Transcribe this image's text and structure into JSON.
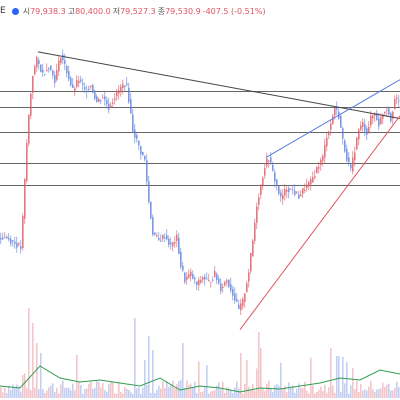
{
  "header": {
    "symbol_fragment": "E",
    "open_label": "시",
    "open_value": "79,938.3",
    "high_label": "고",
    "high_value": "80,400.0",
    "low_label": "저",
    "low_value": "79,527.3",
    "close_label": "종",
    "close_value": "79,530.9",
    "change_value": "-407.5 (-0.51%)",
    "status_dot_color": "#2962ff"
  },
  "colors": {
    "up": "#e05461",
    "down": "#5b7fe0",
    "volume_up": "#f2c6cb",
    "volume_down": "#c4cff2",
    "trendline": "#444444",
    "channel_upper": "#5b7fe0",
    "channel_lower": "#e05461",
    "hline": "#333333",
    "volume_ma": "#2e9e4f"
  },
  "chart_data": {
    "type": "candlestick",
    "price_axis_visible": false,
    "close_path": [
      [
        0,
        79600
      ],
      [
        6,
        79620
      ],
      [
        12,
        79560
      ],
      [
        18,
        79480
      ],
      [
        22,
        79420
      ],
      [
        24,
        79950
      ],
      [
        28,
        81300
      ],
      [
        31,
        82050
      ],
      [
        34,
        82550
      ],
      [
        38,
        82800
      ],
      [
        44,
        82550
      ],
      [
        50,
        82700
      ],
      [
        56,
        82450
      ],
      [
        62,
        82900
      ],
      [
        68,
        82600
      ],
      [
        74,
        82250
      ],
      [
        80,
        82450
      ],
      [
        86,
        82250
      ],
      [
        92,
        82350
      ],
      [
        98,
        82050
      ],
      [
        104,
        82150
      ],
      [
        110,
        81950
      ],
      [
        116,
        82150
      ],
      [
        122,
        82300
      ],
      [
        127,
        82400
      ],
      [
        130,
        82100
      ],
      [
        134,
        81550
      ],
      [
        138,
        81350
      ],
      [
        142,
        81150
      ],
      [
        146,
        81000
      ],
      [
        150,
        80250
      ],
      [
        154,
        79700
      ],
      [
        160,
        79550
      ],
      [
        166,
        79650
      ],
      [
        172,
        79450
      ],
      [
        178,
        79600
      ],
      [
        182,
        79100
      ],
      [
        186,
        78850
      ],
      [
        192,
        78950
      ],
      [
        198,
        78750
      ],
      [
        204,
        78900
      ],
      [
        210,
        78800
      ],
      [
        216,
        78950
      ],
      [
        222,
        78700
      ],
      [
        228,
        78850
      ],
      [
        234,
        78600
      ],
      [
        240,
        78300
      ],
      [
        244,
        78450
      ],
      [
        250,
        79000
      ],
      [
        254,
        79550
      ],
      [
        258,
        80200
      ],
      [
        262,
        80550
      ],
      [
        266,
        80900
      ],
      [
        270,
        81050
      ],
      [
        276,
        80650
      ],
      [
        282,
        80300
      ],
      [
        288,
        80500
      ],
      [
        294,
        80450
      ],
      [
        300,
        80350
      ],
      [
        306,
        80500
      ],
      [
        312,
        80600
      ],
      [
        318,
        80850
      ],
      [
        324,
        81050
      ],
      [
        328,
        81450
      ],
      [
        332,
        81650
      ],
      [
        336,
        81950
      ],
      [
        340,
        81800
      ],
      [
        344,
        81350
      ],
      [
        348,
        81050
      ],
      [
        352,
        80800
      ],
      [
        356,
        81200
      ],
      [
        360,
        81550
      ],
      [
        364,
        81650
      ],
      [
        368,
        81500
      ],
      [
        372,
        81750
      ],
      [
        376,
        81850
      ],
      [
        380,
        81650
      ],
      [
        384,
        81850
      ],
      [
        388,
        81950
      ],
      [
        392,
        81750
      ],
      [
        396,
        82100
      ],
      [
        400,
        82050
      ]
    ],
    "trendlines": [
      {
        "name": "falling-trendline",
        "from": [
          38,
          82950
        ],
        "to": [
          400,
          81750
        ],
        "color_key": "trendline"
      },
      {
        "name": "rising-support-line",
        "from": [
          240,
          77950
        ],
        "to": [
          400,
          81800
        ],
        "color_key": "channel_lower"
      },
      {
        "name": "rising-resistance-line",
        "from": [
          266,
          81050
        ],
        "to": [
          400,
          82450
        ],
        "color_key": "channel_upper"
      }
    ],
    "horizontal_levels": [
      82250,
      81950,
      81500,
      80950,
      80550
    ],
    "volume_ma_path": [
      [
        0,
        0.12
      ],
      [
        20,
        0.1
      ],
      [
        40,
        0.32
      ],
      [
        60,
        0.2
      ],
      [
        80,
        0.16
      ],
      [
        100,
        0.18
      ],
      [
        120,
        0.15
      ],
      [
        140,
        0.12
      ],
      [
        160,
        0.2
      ],
      [
        180,
        0.08
      ],
      [
        200,
        0.12
      ],
      [
        220,
        0.1
      ],
      [
        240,
        0.06
      ],
      [
        260,
        0.1
      ],
      [
        280,
        0.09
      ],
      [
        300,
        0.12
      ],
      [
        320,
        0.15
      ],
      [
        340,
        0.2
      ],
      [
        360,
        0.18
      ],
      [
        380,
        0.28
      ],
      [
        400,
        0.24
      ]
    ],
    "volume_spikes": [
      [
        28,
        0.9
      ],
      [
        32,
        0.75
      ],
      [
        36,
        0.55
      ],
      [
        40,
        0.45
      ],
      [
        134,
        0.8
      ],
      [
        148,
        0.62
      ],
      [
        152,
        0.48
      ],
      [
        182,
        0.55
      ],
      [
        240,
        0.45
      ],
      [
        246,
        0.38
      ],
      [
        258,
        0.66
      ],
      [
        260,
        0.5
      ],
      [
        330,
        0.5
      ],
      [
        336,
        0.42
      ],
      [
        346,
        0.36
      ],
      [
        352,
        0.3
      ]
    ]
  }
}
